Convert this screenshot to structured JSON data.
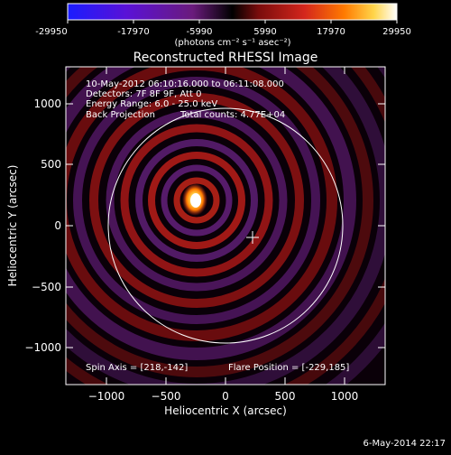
{
  "colorbar": {
    "ticks": [
      "-29950",
      "-17970",
      "-5990",
      "5990",
      "17970",
      "29950"
    ],
    "units": "(photons cm⁻² s⁻¹ asec⁻²)",
    "colors": [
      "#1a1cff",
      "#5a11d6",
      "#6a1b7c",
      "#000000",
      "#7a0c0c",
      "#d4261c",
      "#ff7a00",
      "#ffd54a",
      "#ffffff"
    ]
  },
  "title": "Reconstructed RHESSI Image",
  "info": {
    "time_range": "10-May-2012 06:10:16.000 to 06:11:08.000",
    "detectors": "Detectors: 7F 8F 9F, Att 0",
    "energy": "Energy Range: 6.0 - 25.0 keV",
    "method": "Back Projection",
    "counts": "Total counts: 4.77E+04",
    "spin_axis": "Spin Axis = [218,-142]",
    "flare_position": "Flare Position = [-229,185]"
  },
  "axes": {
    "xlabel": "Heliocentric X (arcsec)",
    "ylabel": "Heliocentric Y (arcsec)",
    "xticks": [
      "−1000",
      "−500",
      "0",
      "500",
      "1000"
    ],
    "yticks": [
      "1000",
      "500",
      "0",
      "−500",
      "−1000"
    ]
  },
  "timestamp": "6-May-2014 22:17"
}
